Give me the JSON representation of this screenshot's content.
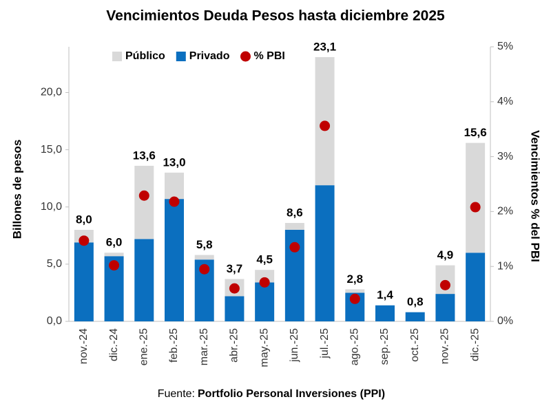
{
  "chart_data": {
    "type": "bar",
    "title": "Vencimientos Deuda Pesos hasta diciembre 2025",
    "ylabel": "Billones de pesos",
    "y2label": "Vencimientos % del PBI",
    "source_prefix": "Fuente:",
    "source_name": "Portfolio Personal Inversiones (PPI)",
    "categories": [
      "nov.-24",
      "dic.-24",
      "ene.-25",
      "feb.-25",
      "mar.-25",
      "abr.-25",
      "may.-25",
      "jun.-25",
      "jul.-25",
      "ago.-25",
      "sep.-25",
      "oct.-25",
      "nov.-25",
      "dic.-25"
    ],
    "series": [
      {
        "name": "Público",
        "color": "#d9d9d9",
        "type": "bar",
        "values": [
          1.1,
          0.3,
          6.4,
          2.3,
          0.4,
          1.5,
          1.1,
          0.6,
          11.2,
          0.3,
          0,
          0,
          2.5,
          9.6
        ]
      },
      {
        "name": "Privado",
        "color": "#0b6fbf",
        "type": "bar",
        "values": [
          6.9,
          5.7,
          7.2,
          10.7,
          5.4,
          2.2,
          3.4,
          8.0,
          11.9,
          2.5,
          1.4,
          0.8,
          2.4,
          6.0
        ]
      },
      {
        "name": "% PBI",
        "color": "#c00000",
        "type": "scatter",
        "axis": "y2",
        "values": [
          1.47,
          1.02,
          2.29,
          2.18,
          0.95,
          0.6,
          0.71,
          1.35,
          3.56,
          0.41,
          null,
          null,
          0.66,
          2.08
        ]
      }
    ],
    "totals": [
      8.0,
      6.0,
      13.6,
      13.0,
      5.8,
      3.7,
      4.5,
      8.6,
      23.1,
      2.8,
      1.4,
      0.8,
      4.9,
      15.6
    ],
    "total_labels": [
      "8,0",
      "6,0",
      "13,6",
      "13,0",
      "5,8",
      "3,7",
      "4,5",
      "8,6",
      "23,1",
      "2,8",
      "1,4",
      "0,8",
      "4,9",
      "15,6"
    ],
    "ylim": [
      0,
      24
    ],
    "yticks": [
      {
        "value": 0,
        "label": "0,0"
      },
      {
        "value": 5,
        "label": "5,0"
      },
      {
        "value": 10,
        "label": "10,0"
      },
      {
        "value": 15,
        "label": "15,0"
      },
      {
        "value": 20,
        "label": "20,0"
      }
    ],
    "y2lim": [
      0,
      5
    ],
    "y2ticks": [
      {
        "value": 0,
        "label": "0%"
      },
      {
        "value": 1,
        "label": "1%"
      },
      {
        "value": 2,
        "label": "2%"
      },
      {
        "value": 3,
        "label": "3%"
      },
      {
        "value": 4,
        "label": "4%"
      },
      {
        "value": 5,
        "label": "5%"
      }
    ],
    "legend": "top"
  }
}
